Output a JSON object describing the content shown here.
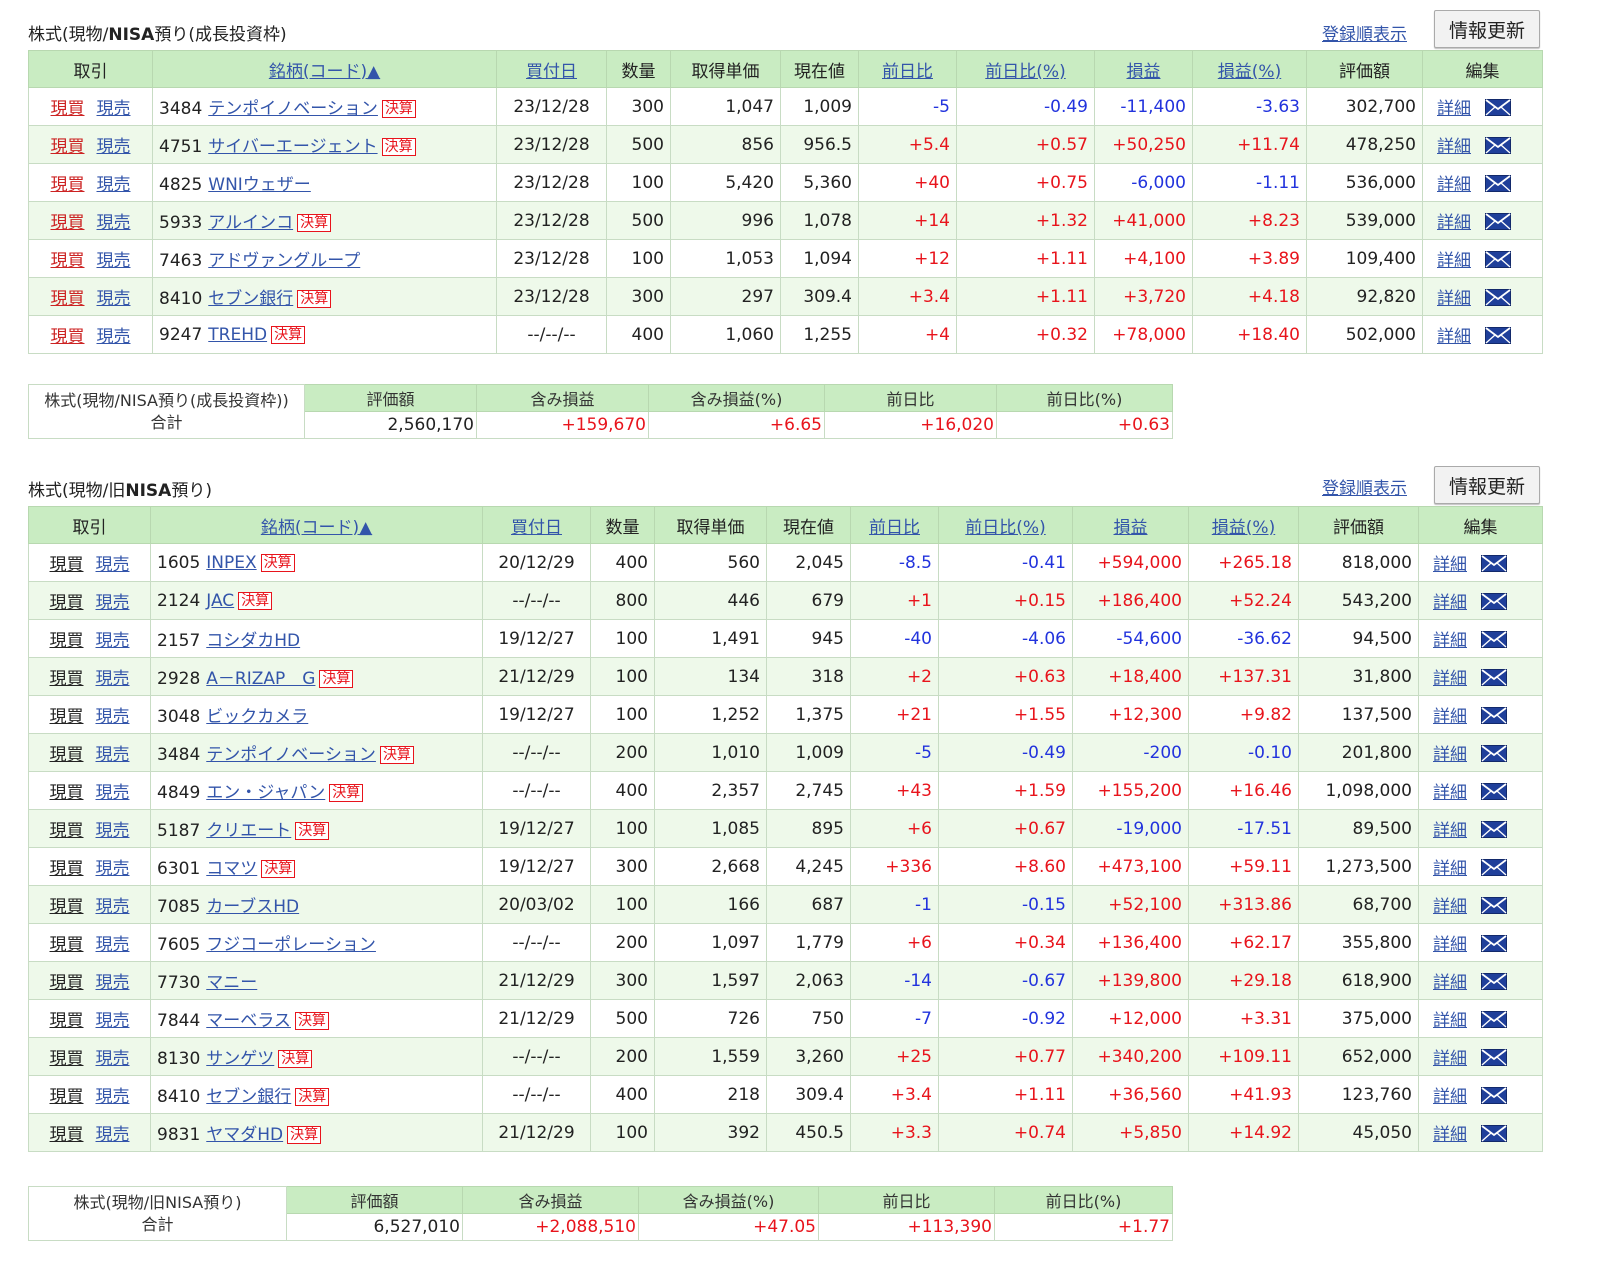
{
  "section1": {
    "title_prefix": "株式(現物/",
    "title_bold": "NISA",
    "title_suffix": "預り(成長投資枠)",
    "order_link": "登録順表示",
    "refresh_label": "情報更新",
    "headers": {
      "trade": "取引",
      "name": "銘柄(コード)▲",
      "buy_date": "買付日",
      "qty": "数量",
      "cost": "取得単価",
      "price": "現在値",
      "chg": "前日比",
      "chg_pct": "前日比(%)",
      "pl": "損益",
      "pl_pct": "損益(%)",
      "value": "評価額",
      "edit": "編集"
    },
    "rows": [
      {
        "buy": "現買",
        "sell": "現売",
        "code": "3484",
        "name": "テンポイノベーション",
        "kessan": true,
        "date": "23/12/28",
        "qty": "300",
        "cost": "1,047",
        "price": "1,009",
        "chg": "-5",
        "chg_pct": "-0.49",
        "pl": "-11,400",
        "pl_pct": "-3.63",
        "value": "302,700",
        "detail": "詳細"
      },
      {
        "buy": "現買",
        "sell": "現売",
        "code": "4751",
        "name": "サイバーエージェント",
        "kessan": true,
        "date": "23/12/28",
        "qty": "500",
        "cost": "856",
        "price": "956.5",
        "chg": "+5.4",
        "chg_pct": "+0.57",
        "pl": "+50,250",
        "pl_pct": "+11.74",
        "value": "478,250",
        "detail": "詳細"
      },
      {
        "buy": "現買",
        "sell": "現売",
        "code": "4825",
        "name": "WNIウェザー",
        "kessan": false,
        "date": "23/12/28",
        "qty": "100",
        "cost": "5,420",
        "price": "5,360",
        "chg": "+40",
        "chg_pct": "+0.75",
        "pl": "-6,000",
        "pl_pct": "-1.11",
        "value": "536,000",
        "detail": "詳細"
      },
      {
        "buy": "現買",
        "sell": "現売",
        "code": "5933",
        "name": "アルインコ",
        "kessan": true,
        "date": "23/12/28",
        "qty": "500",
        "cost": "996",
        "price": "1,078",
        "chg": "+14",
        "chg_pct": "+1.32",
        "pl": "+41,000",
        "pl_pct": "+8.23",
        "value": "539,000",
        "detail": "詳細"
      },
      {
        "buy": "現買",
        "sell": "現売",
        "code": "7463",
        "name": "アドヴァングループ",
        "kessan": false,
        "date": "23/12/28",
        "qty": "100",
        "cost": "1,053",
        "price": "1,094",
        "chg": "+12",
        "chg_pct": "+1.11",
        "pl": "+4,100",
        "pl_pct": "+3.89",
        "value": "109,400",
        "detail": "詳細"
      },
      {
        "buy": "現買",
        "sell": "現売",
        "code": "8410",
        "name": "セブン銀行",
        "kessan": true,
        "date": "23/12/28",
        "qty": "300",
        "cost": "297",
        "price": "309.4",
        "chg": "+3.4",
        "chg_pct": "+1.11",
        "pl": "+3,720",
        "pl_pct": "+4.18",
        "value": "92,820",
        "detail": "詳細"
      },
      {
        "buy": "現買",
        "sell": "現売",
        "code": "9247",
        "name": "TREHD",
        "kessan": true,
        "date": "--/--/--",
        "qty": "400",
        "cost": "1,060",
        "price": "1,255",
        "chg": "+4",
        "chg_pct": "+0.32",
        "pl": "+78,000",
        "pl_pct": "+18.40",
        "value": "502,000",
        "detail": "詳細"
      }
    ],
    "summary": {
      "label1": "株式(現物/NISA預り(成長投資枠))",
      "label2": "合計",
      "h_value": "評価額",
      "h_pl": "含み損益",
      "h_pl_pct": "含み損益(%)",
      "h_chg": "前日比",
      "h_chg_pct": "前日比(%)",
      "value": "2,560,170",
      "pl": "+159,670",
      "pl_pct": "+6.65",
      "chg": "+16,020",
      "chg_pct": "+0.63"
    }
  },
  "section2": {
    "title_prefix": "株式(現物/旧",
    "title_bold": "NISA",
    "title_suffix": "預り)",
    "order_link": "登録順表示",
    "refresh_label": "情報更新",
    "headers": {
      "trade": "取引",
      "name": "銘柄(コード)▲",
      "buy_date": "買付日",
      "qty": "数量",
      "cost": "取得単価",
      "price": "現在値",
      "chg": "前日比",
      "chg_pct": "前日比(%)",
      "pl": "損益",
      "pl_pct": "損益(%)",
      "value": "評価額",
      "edit": "編集"
    },
    "rows": [
      {
        "buy": "現買",
        "sell": "現売",
        "code": "1605",
        "name": "INPEX",
        "kessan": true,
        "date": "20/12/29",
        "qty": "400",
        "cost": "560",
        "price": "2,045",
        "chg": "-8.5",
        "chg_pct": "-0.41",
        "pl": "+594,000",
        "pl_pct": "+265.18",
        "value": "818,000",
        "detail": "詳細"
      },
      {
        "buy": "現買",
        "sell": "現売",
        "code": "2124",
        "name": "JAC",
        "kessan": true,
        "date": "--/--/--",
        "qty": "800",
        "cost": "446",
        "price": "679",
        "chg": "+1",
        "chg_pct": "+0.15",
        "pl": "+186,400",
        "pl_pct": "+52.24",
        "value": "543,200",
        "detail": "詳細"
      },
      {
        "buy": "現買",
        "sell": "現売",
        "code": "2157",
        "name": "コシダカHD",
        "kessan": false,
        "date": "19/12/27",
        "qty": "100",
        "cost": "1,491",
        "price": "945",
        "chg": "-40",
        "chg_pct": "-4.06",
        "pl": "-54,600",
        "pl_pct": "-36.62",
        "value": "94,500",
        "detail": "詳細"
      },
      {
        "buy": "現買",
        "sell": "現売",
        "code": "2928",
        "name": "A－RIZAP　G",
        "kessan": true,
        "date": "21/12/29",
        "qty": "100",
        "cost": "134",
        "price": "318",
        "chg": "+2",
        "chg_pct": "+0.63",
        "pl": "+18,400",
        "pl_pct": "+137.31",
        "value": "31,800",
        "detail": "詳細"
      },
      {
        "buy": "現買",
        "sell": "現売",
        "code": "3048",
        "name": "ビックカメラ",
        "kessan": false,
        "date": "19/12/27",
        "qty": "100",
        "cost": "1,252",
        "price": "1,375",
        "chg": "+21",
        "chg_pct": "+1.55",
        "pl": "+12,300",
        "pl_pct": "+9.82",
        "value": "137,500",
        "detail": "詳細"
      },
      {
        "buy": "現買",
        "sell": "現売",
        "code": "3484",
        "name": "テンポイノベーション",
        "kessan": true,
        "date": "--/--/--",
        "qty": "200",
        "cost": "1,010",
        "price": "1,009",
        "chg": "-5",
        "chg_pct": "-0.49",
        "pl": "-200",
        "pl_pct": "-0.10",
        "value": "201,800",
        "detail": "詳細"
      },
      {
        "buy": "現買",
        "sell": "現売",
        "code": "4849",
        "name": "エン・ジャパン",
        "kessan": true,
        "date": "--/--/--",
        "qty": "400",
        "cost": "2,357",
        "price": "2,745",
        "chg": "+43",
        "chg_pct": "+1.59",
        "pl": "+155,200",
        "pl_pct": "+16.46",
        "value": "1,098,000",
        "detail": "詳細"
      },
      {
        "buy": "現買",
        "sell": "現売",
        "code": "5187",
        "name": "クリエート",
        "kessan": true,
        "date": "19/12/27",
        "qty": "100",
        "cost": "1,085",
        "price": "895",
        "chg": "+6",
        "chg_pct": "+0.67",
        "pl": "-19,000",
        "pl_pct": "-17.51",
        "value": "89,500",
        "detail": "詳細"
      },
      {
        "buy": "現買",
        "sell": "現売",
        "code": "6301",
        "name": "コマツ",
        "kessan": true,
        "date": "19/12/27",
        "qty": "300",
        "cost": "2,668",
        "price": "4,245",
        "chg": "+336",
        "chg_pct": "+8.60",
        "pl": "+473,100",
        "pl_pct": "+59.11",
        "value": "1,273,500",
        "detail": "詳細"
      },
      {
        "buy": "現買",
        "sell": "現売",
        "code": "7085",
        "name": "カーブスHD",
        "kessan": false,
        "date": "20/03/02",
        "qty": "100",
        "cost": "166",
        "price": "687",
        "chg": "-1",
        "chg_pct": "-0.15",
        "pl": "+52,100",
        "pl_pct": "+313.86",
        "value": "68,700",
        "detail": "詳細"
      },
      {
        "buy": "現買",
        "sell": "現売",
        "code": "7605",
        "name": "フジコーポレーション",
        "kessan": false,
        "date": "--/--/--",
        "qty": "200",
        "cost": "1,097",
        "price": "1,779",
        "chg": "+6",
        "chg_pct": "+0.34",
        "pl": "+136,400",
        "pl_pct": "+62.17",
        "value": "355,800",
        "detail": "詳細"
      },
      {
        "buy": "現買",
        "sell": "現売",
        "code": "7730",
        "name": "マニー",
        "kessan": false,
        "date": "21/12/29",
        "qty": "300",
        "cost": "1,597",
        "price": "2,063",
        "chg": "-14",
        "chg_pct": "-0.67",
        "pl": "+139,800",
        "pl_pct": "+29.18",
        "value": "618,900",
        "detail": "詳細"
      },
      {
        "buy": "現買",
        "sell": "現売",
        "code": "7844",
        "name": "マーベラス",
        "kessan": true,
        "date": "21/12/29",
        "qty": "500",
        "cost": "726",
        "price": "750",
        "chg": "-7",
        "chg_pct": "-0.92",
        "pl": "+12,000",
        "pl_pct": "+3.31",
        "value": "375,000",
        "detail": "詳細"
      },
      {
        "buy": "現買",
        "sell": "現売",
        "code": "8130",
        "name": "サンゲツ",
        "kessan": true,
        "date": "--/--/--",
        "qty": "200",
        "cost": "1,559",
        "price": "3,260",
        "chg": "+25",
        "chg_pct": "+0.77",
        "pl": "+340,200",
        "pl_pct": "+109.11",
        "value": "652,000",
        "detail": "詳細"
      },
      {
        "buy": "現買",
        "sell": "現売",
        "code": "8410",
        "name": "セブン銀行",
        "kessan": true,
        "date": "--/--/--",
        "qty": "400",
        "cost": "218",
        "price": "309.4",
        "chg": "+3.4",
        "chg_pct": "+1.11",
        "pl": "+36,560",
        "pl_pct": "+41.93",
        "value": "123,760",
        "detail": "詳細"
      },
      {
        "buy": "現買",
        "sell": "現売",
        "code": "9831",
        "name": "ヤマダHD",
        "kessan": true,
        "date": "21/12/29",
        "qty": "100",
        "cost": "392",
        "price": "450.5",
        "chg": "+3.3",
        "chg_pct": "+0.74",
        "pl": "+5,850",
        "pl_pct": "+14.92",
        "value": "45,050",
        "detail": "詳細"
      }
    ],
    "summary": {
      "label1": "株式(現物/旧NISA預り)",
      "label2": "合計",
      "h_value": "評価額",
      "h_pl": "含み損益",
      "h_pl_pct": "含み損益(%)",
      "h_chg": "前日比",
      "h_chg_pct": "前日比(%)",
      "value": "6,527,010",
      "pl": "+2,088,510",
      "pl_pct": "+47.05",
      "chg": "+113,390",
      "chg_pct": "+1.77"
    }
  },
  "kessan_label": "決算",
  "colors": {
    "header_bg": "#c9ecc2",
    "row_alt": "#eef9ea",
    "positive": "#e8141c",
    "negative": "#2233dd",
    "link": "#3355aa"
  },
  "icons": {
    "mail": "mail-icon"
  }
}
